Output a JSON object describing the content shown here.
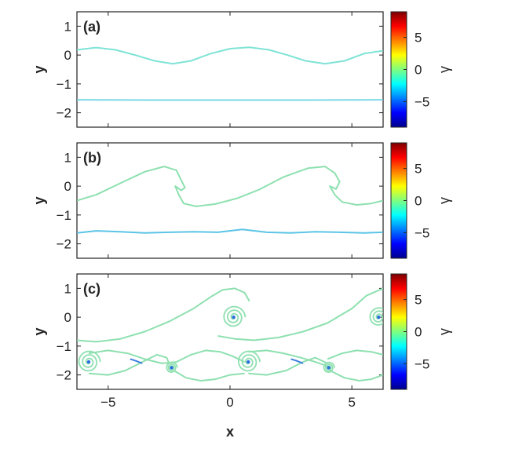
{
  "figure": {
    "xlabel": "x",
    "ylabel": "y",
    "colorbar_label": "γ"
  },
  "chart_data": [
    {
      "type": "line",
      "panel": "(a)",
      "xlim": [
        -6.283,
        6.283
      ],
      "ylim": [
        -2.5,
        1.5
      ],
      "xticks": [
        -5,
        0,
        5
      ],
      "yticks": [
        1,
        0,
        -1,
        -2
      ],
      "grid": false,
      "colorbar": {
        "ticks": [
          5,
          0,
          -5
        ],
        "clim": [
          -9,
          9
        ]
      },
      "series": [
        {
          "color": "#7fe3d6",
          "x": [
            -6.28,
            -5.5,
            -4.7,
            -3.9,
            -3.1,
            -2.35,
            -1.6,
            -0.8,
            0,
            0.8,
            1.6,
            2.35,
            3.1,
            3.9,
            4.7,
            5.5,
            6.28
          ],
          "y": [
            0.18,
            0.26,
            0.18,
            0.0,
            -0.2,
            -0.3,
            -0.2,
            0.05,
            0.22,
            0.27,
            0.18,
            0.0,
            -0.2,
            -0.3,
            -0.2,
            0.05,
            0.15
          ]
        },
        {
          "color": "#7ad8e8",
          "x": [
            -6.28,
            -3,
            0,
            3,
            6.28
          ],
          "y": [
            -1.55,
            -1.56,
            -1.56,
            -1.56,
            -1.55
          ]
        }
      ]
    },
    {
      "type": "line",
      "panel": "(b)",
      "xlim": [
        -6.283,
        6.283
      ],
      "ylim": [
        -2.5,
        1.5
      ],
      "xticks": [
        -5,
        0,
        5
      ],
      "yticks": [
        1,
        0,
        -1,
        -2
      ],
      "grid": false,
      "colorbar": {
        "ticks": [
          5,
          0,
          -5
        ],
        "clim": [
          -9,
          9
        ]
      },
      "series": [
        {
          "color": "#8ee0b0",
          "x": [
            -6.28,
            -5.5,
            -4.5,
            -3.5,
            -2.7,
            -2.2,
            -2.0,
            -1.85,
            -2.0,
            -2.25,
            -2.1,
            -1.9,
            -1.4,
            -0.6,
            0.3,
            1.2,
            2.2,
            3.2,
            3.9,
            4.3,
            4.5,
            4.35,
            4.1,
            4.3,
            4.6,
            5.2,
            5.8,
            6.28
          ],
          "y": [
            -0.5,
            -0.3,
            0.1,
            0.5,
            0.68,
            0.55,
            0.2,
            -0.05,
            -0.15,
            0.0,
            -0.3,
            -0.6,
            -0.7,
            -0.62,
            -0.42,
            -0.12,
            0.32,
            0.62,
            0.68,
            0.45,
            0.15,
            -0.1,
            0.0,
            -0.3,
            -0.55,
            -0.65,
            -0.6,
            -0.5
          ]
        },
        {
          "color": "#5cc4e6",
          "x": [
            -6.28,
            -5.5,
            -4.5,
            -3.5,
            -2.5,
            -1.5,
            -0.5,
            0.5,
            1.5,
            2.5,
            3.5,
            4.5,
            5.5,
            6.28
          ],
          "y": [
            -1.62,
            -1.55,
            -1.58,
            -1.62,
            -1.6,
            -1.58,
            -1.6,
            -1.5,
            -1.6,
            -1.62,
            -1.58,
            -1.6,
            -1.62,
            -1.6
          ]
        }
      ]
    },
    {
      "type": "line",
      "panel": "(c)",
      "xlim": [
        -6.283,
        6.283
      ],
      "ylim": [
        -2.5,
        1.5
      ],
      "xticks": [
        -5,
        0,
        5
      ],
      "yticks": [
        1,
        0,
        -1,
        -2
      ],
      "grid": false,
      "colorbar": {
        "ticks": [
          5,
          0,
          -5
        ],
        "clim": [
          -9,
          9
        ]
      },
      "vortices": [
        {
          "x": 0.15,
          "y": 0.0,
          "r": 0.4
        },
        {
          "x": 6.1,
          "y": 0.0,
          "r": 0.35
        },
        {
          "x": -5.8,
          "y": -1.55,
          "r": 0.4
        },
        {
          "x": 0.75,
          "y": -1.55,
          "r": 0.4
        },
        {
          "x": -2.4,
          "y": -1.75,
          "r": 0.2
        },
        {
          "x": 4.05,
          "y": -1.75,
          "r": 0.2
        }
      ],
      "series": [
        {
          "color": "#8ee0b0",
          "x": [
            -6.28,
            -5.5,
            -4.5,
            -3.5,
            -2.5,
            -1.5,
            -0.8,
            -0.3,
            0.2,
            0.6,
            0.8
          ],
          "y": [
            -0.8,
            -0.85,
            -0.75,
            -0.5,
            -0.15,
            0.3,
            0.7,
            0.95,
            1.0,
            0.85,
            0.55
          ]
        },
        {
          "color": "#8ee0b0",
          "x": [
            -0.5,
            0.2,
            1.0,
            2.0,
            3.0,
            4.0,
            5.0,
            5.6,
            6.28
          ],
          "y": [
            -0.65,
            -0.75,
            -0.8,
            -0.7,
            -0.5,
            -0.2,
            0.3,
            0.75,
            1.0
          ]
        },
        {
          "color": "#8ee0b0",
          "x": [
            -5.8,
            -5.0,
            -4.3,
            -3.6,
            -3.0,
            -2.6,
            -2.5
          ],
          "y": [
            -1.95,
            -2.0,
            -1.85,
            -1.55,
            -1.3,
            -1.4,
            -1.6
          ]
        },
        {
          "color": "#8ee0b0",
          "x": [
            -5.8,
            -5.0,
            -4.2,
            -3.5,
            -2.8,
            -2.2,
            -1.6,
            -1.0,
            -0.4,
            0.1,
            0.6
          ],
          "y": [
            -1.25,
            -1.15,
            -1.25,
            -1.45,
            -1.6,
            -1.55,
            -1.3,
            -1.15,
            -1.2,
            -1.35,
            -1.55
          ]
        },
        {
          "color": "#8ee0b0",
          "x": [
            -2.3,
            -1.8,
            -1.2,
            -0.6,
            0.0,
            0.6
          ],
          "y": [
            -1.85,
            -2.1,
            -2.2,
            -2.15,
            -2.0,
            -1.95
          ]
        },
        {
          "color": "#8ee0b0",
          "x": [
            0.75,
            1.5,
            2.2,
            2.9,
            3.5,
            4.0
          ],
          "y": [
            -1.2,
            -1.15,
            -1.25,
            -1.4,
            -1.55,
            -1.7
          ]
        },
        {
          "color": "#8ee0b0",
          "x": [
            0.75,
            1.5,
            2.3,
            3.0,
            3.5,
            4.0
          ],
          "y": [
            -1.95,
            -2.0,
            -1.85,
            -1.55,
            -1.4,
            -1.6
          ]
        },
        {
          "color": "#8ee0b0",
          "x": [
            4.1,
            4.7,
            5.3,
            5.8,
            6.28
          ],
          "y": [
            -1.85,
            -2.1,
            -2.2,
            -2.15,
            -2.0
          ]
        },
        {
          "color": "#8ee0b0",
          "x": [
            4.0,
            4.6,
            5.2,
            5.8,
            6.28
          ],
          "y": [
            -1.45,
            -1.25,
            -1.15,
            -1.2,
            -1.3
          ]
        },
        {
          "color": "#3f7fe0",
          "x": [
            -4.1,
            -3.9,
            -3.75,
            -3.6
          ],
          "y": [
            -1.45,
            -1.5,
            -1.55,
            -1.6
          ]
        },
        {
          "color": "#3f7fe0",
          "x": [
            2.5,
            2.7,
            2.85,
            3.0
          ],
          "y": [
            -1.45,
            -1.5,
            -1.55,
            -1.6
          ]
        }
      ]
    }
  ]
}
